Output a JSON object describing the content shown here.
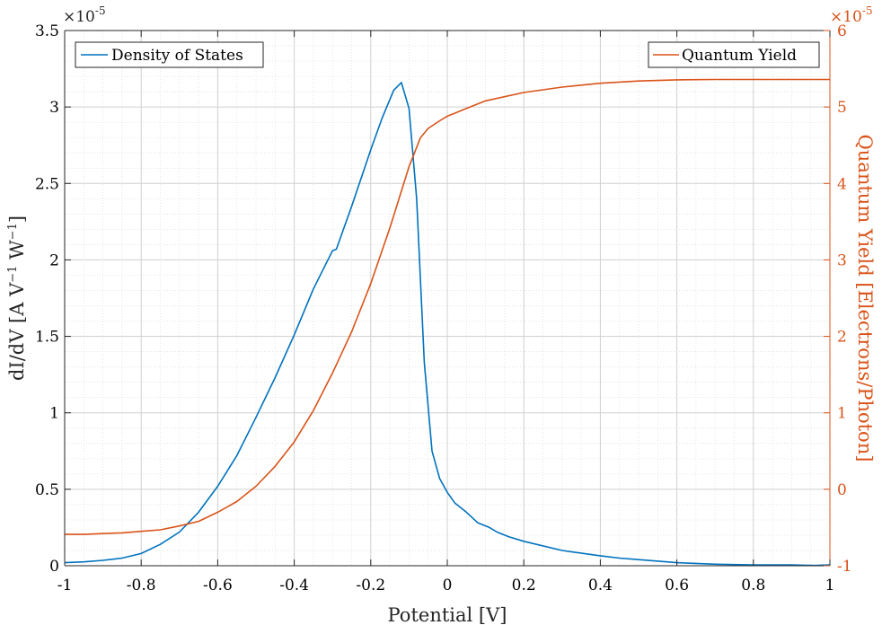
{
  "chart_data": {
    "type": "line",
    "xlabel": "Potential [V]",
    "xlim": [
      -1,
      1
    ],
    "xticks": [
      -1,
      -0.8,
      -0.6,
      -0.4,
      -0.2,
      0,
      0.2,
      0.4,
      0.6,
      0.8,
      1
    ],
    "xtick_labels": [
      "-1",
      "-0.8",
      "-0.6",
      "-0.4",
      "-0.2",
      "0",
      "0.2",
      "0.4",
      "0.6",
      "0.8",
      "1"
    ],
    "grid": true,
    "minor_grid": true,
    "left_axis": {
      "label": "dI/dV [A V⁻¹ W⁻¹]",
      "label_parts": {
        "base": "dI/dV [A V",
        "sup1": "−1",
        "mid": " W",
        "sup2": "−1",
        "end": "]"
      },
      "exponent_label": "×10",
      "exponent_power": "-5",
      "ylim": [
        0,
        3.5
      ],
      "ticks": [
        0,
        0.5,
        1,
        1.5,
        2,
        2.5,
        3,
        3.5
      ],
      "tick_labels": [
        "0",
        "0.5",
        "1",
        "1.5",
        "2",
        "2.5",
        "3",
        "3.5"
      ],
      "color": "#262626"
    },
    "right_axis": {
      "label": "Quantum Yield [Electrons/Photon]",
      "exponent_label": "×10",
      "exponent_power": "-5",
      "ylim": [
        -1,
        6
      ],
      "ticks": [
        -1,
        0,
        1,
        2,
        3,
        4,
        5,
        6
      ],
      "tick_labels": [
        "-1",
        "0",
        "1",
        "2",
        "3",
        "4",
        "5",
        "6"
      ],
      "color": "#D95319"
    },
    "series": [
      {
        "name": "Density of States",
        "axis": "left",
        "color": "#0072BD",
        "x": [
          -1,
          -0.95,
          -0.9,
          -0.85,
          -0.8,
          -0.75,
          -0.7,
          -0.65,
          -0.6,
          -0.55,
          -0.5,
          -0.45,
          -0.4,
          -0.35,
          -0.3,
          -0.29,
          -0.25,
          -0.2,
          -0.17,
          -0.14,
          -0.12,
          -0.1,
          -0.08,
          -0.06,
          -0.04,
          -0.02,
          0,
          0.02,
          0.05,
          0.08,
          0.11,
          0.13,
          0.16,
          0.2,
          0.3,
          0.4,
          0.45,
          0.5,
          0.6,
          0.7,
          0.8,
          0.9,
          0.96,
          1
        ],
        "y": [
          0.02,
          0.025,
          0.035,
          0.05,
          0.08,
          0.14,
          0.22,
          0.35,
          0.52,
          0.72,
          0.97,
          1.23,
          1.51,
          1.81,
          2.06,
          2.07,
          2.35,
          2.72,
          2.93,
          3.11,
          3.16,
          2.99,
          2.4,
          1.33,
          0.75,
          0.57,
          0.48,
          0.41,
          0.35,
          0.28,
          0.25,
          0.22,
          0.19,
          0.16,
          0.1,
          0.065,
          0.05,
          0.04,
          0.02,
          0.01,
          0.005,
          0.005,
          0.002,
          0.005
        ]
      },
      {
        "name": "Quantum Yield",
        "axis": "right",
        "color": "#D95319",
        "x": [
          -1,
          -0.95,
          -0.9,
          -0.85,
          -0.8,
          -0.75,
          -0.7,
          -0.65,
          -0.6,
          -0.55,
          -0.5,
          -0.45,
          -0.4,
          -0.35,
          -0.3,
          -0.25,
          -0.2,
          -0.15,
          -0.1,
          -0.07,
          -0.05,
          -0.02,
          0,
          0.05,
          0.1,
          0.2,
          0.3,
          0.4,
          0.5,
          0.6,
          0.7,
          0.8,
          0.9,
          1
        ],
        "y": [
          -0.59,
          -0.59,
          -0.58,
          -0.57,
          -0.55,
          -0.53,
          -0.48,
          -0.42,
          -0.3,
          -0.16,
          0.04,
          0.3,
          0.62,
          1.03,
          1.52,
          2.06,
          2.69,
          3.42,
          4.22,
          4.6,
          4.72,
          4.82,
          4.88,
          4.98,
          5.08,
          5.19,
          5.26,
          5.31,
          5.34,
          5.355,
          5.36,
          5.36,
          5.36,
          5.36
        ]
      }
    ],
    "legends": [
      {
        "series": "Density of States",
        "placement": "top-left"
      },
      {
        "series": "Quantum Yield",
        "placement": "top-right"
      }
    ]
  }
}
